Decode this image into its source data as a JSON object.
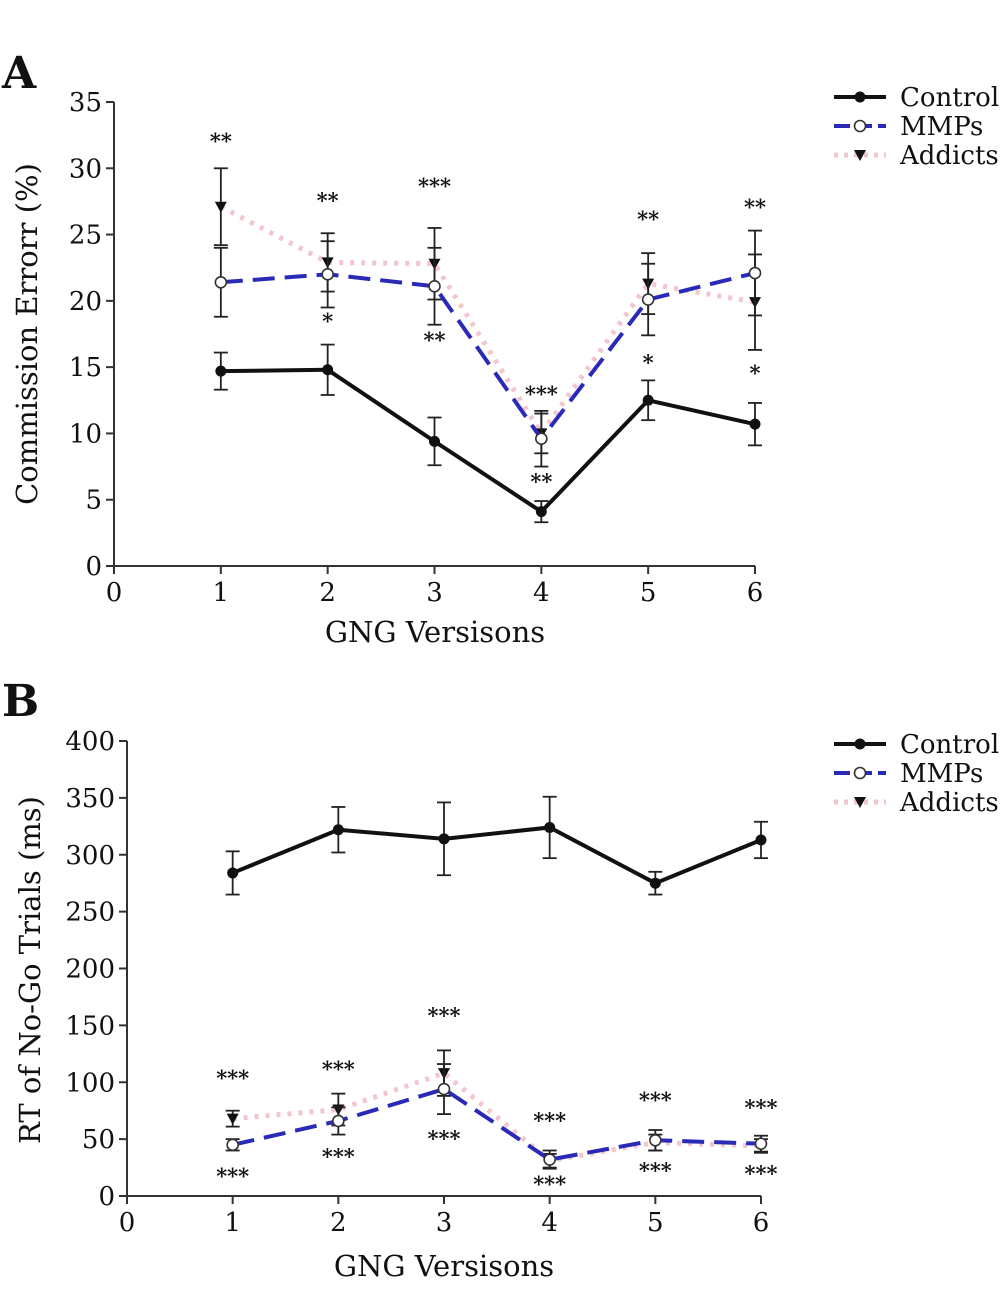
{
  "chart_data": [
    {
      "panel": "A",
      "type": "line",
      "xlabel": "GNG Versisons",
      "ylabel": "Commission Errorr (%)",
      "xlim": [
        0,
        6
      ],
      "ylim": [
        0,
        35
      ],
      "xticks": [
        "0",
        "1",
        "2",
        "3",
        "4",
        "5",
        "6"
      ],
      "yticks": [
        "0",
        "5",
        "10",
        "15",
        "20",
        "25",
        "30",
        "35"
      ],
      "x": [
        1,
        2,
        3,
        4,
        5,
        6
      ],
      "grid": false,
      "legend_position": "top-right",
      "series": [
        {
          "name": "Control",
          "color": "#111111",
          "style": "solid",
          "marker": "filled-circle",
          "values": [
            14.7,
            14.8,
            9.4,
            4.1,
            12.5,
            10.7
          ],
          "errors": [
            1.4,
            1.9,
            1.8,
            0.8,
            1.5,
            1.6
          ]
        },
        {
          "name": "MMPs",
          "color": "#2a2ab8",
          "style": "dashed",
          "marker": "open-circle",
          "values": [
            21.4,
            22.0,
            21.1,
            9.6,
            20.1,
            22.1
          ],
          "errors": [
            2.6,
            2.5,
            2.9,
            2.1,
            2.7,
            3.2
          ]
        },
        {
          "name": "Addicts",
          "color": "#f2c6cc",
          "style": "dotted",
          "marker": "filled-triangle-down",
          "values": [
            27.1,
            22.9,
            22.8,
            10.0,
            21.3,
            19.9
          ],
          "errors": [
            2.9,
            2.2,
            2.7,
            1.5,
            2.3,
            3.6
          ]
        }
      ],
      "annotations": [
        {
          "x": 1,
          "y": 31.5,
          "text": "**"
        },
        {
          "x": 2,
          "y": 27.0,
          "text": "**"
        },
        {
          "x": 2,
          "y": 17.9,
          "text": "*"
        },
        {
          "x": 3,
          "y": 28.1,
          "text": "***"
        },
        {
          "x": 3,
          "y": 16.5,
          "text": "**"
        },
        {
          "x": 4,
          "y": 12.4,
          "text": "***"
        },
        {
          "x": 4,
          "y": 5.8,
          "text": "**"
        },
        {
          "x": 5,
          "y": 25.6,
          "text": "**"
        },
        {
          "x": 5,
          "y": 14.8,
          "text": "*"
        },
        {
          "x": 6,
          "y": 26.5,
          "text": "**"
        },
        {
          "x": 6,
          "y": 14.0,
          "text": "*"
        }
      ]
    },
    {
      "panel": "B",
      "type": "line",
      "xlabel": "GNG Versisons",
      "ylabel": "RT of No-Go Trials (ms)",
      "xlim": [
        0,
        6
      ],
      "ylim": [
        0,
        400
      ],
      "xticks": [
        "0",
        "1",
        "2",
        "3",
        "4",
        "5",
        "6"
      ],
      "yticks": [
        "0",
        "50",
        "100",
        "150",
        "200",
        "250",
        "300",
        "350",
        "400"
      ],
      "x": [
        1,
        2,
        3,
        4,
        5,
        6
      ],
      "grid": false,
      "legend_position": "top-right",
      "series": [
        {
          "name": "Control",
          "color": "#111111",
          "style": "solid",
          "marker": "filled-circle",
          "values": [
            284,
            322,
            314,
            324,
            275,
            313
          ],
          "errors": [
            19,
            20,
            32,
            27,
            10,
            16
          ]
        },
        {
          "name": "MMPs",
          "color": "#2a2ab8",
          "style": "dashed",
          "marker": "open-circle",
          "values": [
            45,
            66,
            94,
            32,
            49,
            46
          ],
          "errors": [
            5,
            12,
            22,
            8,
            9,
            7
          ]
        },
        {
          "name": "Addicts",
          "color": "#f2c6cc",
          "style": "dotted",
          "marker": "filled-triangle-down",
          "values": [
            68,
            76,
            108,
            31,
            47,
            44
          ],
          "errors": [
            7,
            14,
            20,
            6,
            7,
            6
          ]
        }
      ],
      "annotations": [
        {
          "x": 1,
          "y": 97,
          "text": "***"
        },
        {
          "x": 1,
          "y": 11,
          "text": "***"
        },
        {
          "x": 2,
          "y": 105,
          "text": "***"
        },
        {
          "x": 2,
          "y": 28,
          "text": "***"
        },
        {
          "x": 3,
          "y": 152,
          "text": "***"
        },
        {
          "x": 3,
          "y": 44,
          "text": "***"
        },
        {
          "x": 4,
          "y": 60,
          "text": "***"
        },
        {
          "x": 4,
          "y": 4,
          "text": "***"
        },
        {
          "x": 5,
          "y": 78,
          "text": "***"
        },
        {
          "x": 5,
          "y": 16,
          "text": "***"
        },
        {
          "x": 6,
          "y": 71,
          "text": "***"
        },
        {
          "x": 6,
          "y": 13,
          "text": "***"
        }
      ]
    }
  ]
}
